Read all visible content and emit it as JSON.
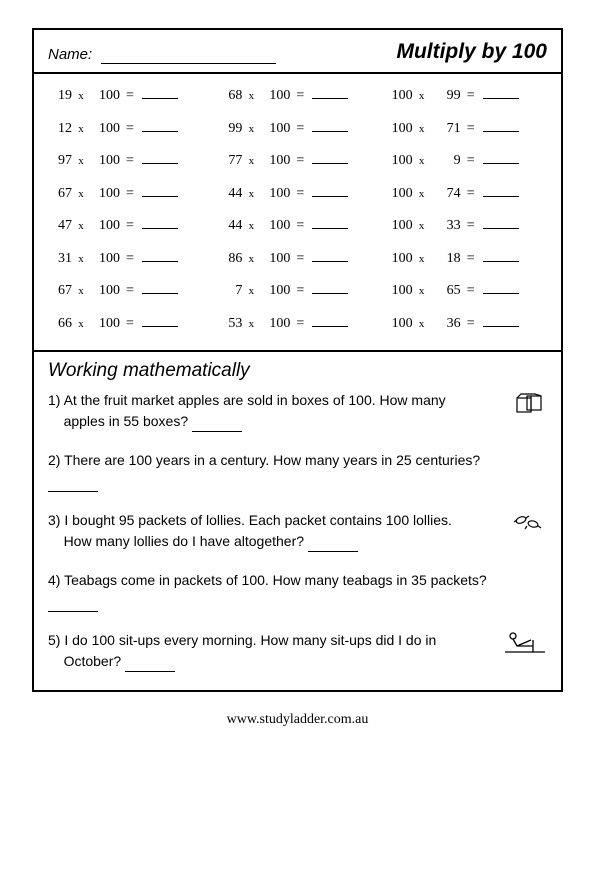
{
  "header": {
    "name_label": "Name:",
    "title": "Multiply by 100"
  },
  "problems": [
    [
      {
        "a": "19",
        "b": "100"
      },
      {
        "a": "68",
        "b": "100"
      },
      {
        "a": "100",
        "b": "99"
      }
    ],
    [
      {
        "a": "12",
        "b": "100"
      },
      {
        "a": "99",
        "b": "100"
      },
      {
        "a": "100",
        "b": "71"
      }
    ],
    [
      {
        "a": "97",
        "b": "100"
      },
      {
        "a": "77",
        "b": "100"
      },
      {
        "a": "100",
        "b": "9"
      }
    ],
    [
      {
        "a": "67",
        "b": "100"
      },
      {
        "a": "44",
        "b": "100"
      },
      {
        "a": "100",
        "b": "74"
      }
    ],
    [
      {
        "a": "47",
        "b": "100"
      },
      {
        "a": "44",
        "b": "100"
      },
      {
        "a": "100",
        "b": "33"
      }
    ],
    [
      {
        "a": "31",
        "b": "100"
      },
      {
        "a": "86",
        "b": "100"
      },
      {
        "a": "100",
        "b": "18"
      }
    ],
    [
      {
        "a": "67",
        "b": "100"
      },
      {
        "a": "7",
        "b": "100"
      },
      {
        "a": "100",
        "b": "65"
      }
    ],
    [
      {
        "a": "66",
        "b": "100"
      },
      {
        "a": "53",
        "b": "100"
      },
      {
        "a": "100",
        "b": "36"
      }
    ]
  ],
  "working_title": "Working mathematically",
  "questions": [
    {
      "num": "1)",
      "text1": "At the fruit market apples are sold in boxes of 100. How many",
      "text2": "apples in 55 boxes?",
      "icon": "box"
    },
    {
      "num": "2)",
      "text1": "There are 100 years in a century. How many years in 25 centuries?",
      "text2": "",
      "icon": ""
    },
    {
      "num": "3)",
      "text1": "I bought 95 packets of lollies. Each packet contains 100 lollies.",
      "text2": "How many lollies do I have altogether?",
      "icon": "lollies"
    },
    {
      "num": "4)",
      "text1": "Teabags come in packets of 100. How many teabags in 35 packets?",
      "text2": "",
      "icon": ""
    },
    {
      "num": "5)",
      "text1": "I do 100 sit-ups every morning. How many sit-ups did I do in",
      "text2": "October?",
      "icon": "situp"
    }
  ],
  "footer": "www.studyladder.com.au",
  "symbols": {
    "times": "x",
    "eq": "="
  }
}
